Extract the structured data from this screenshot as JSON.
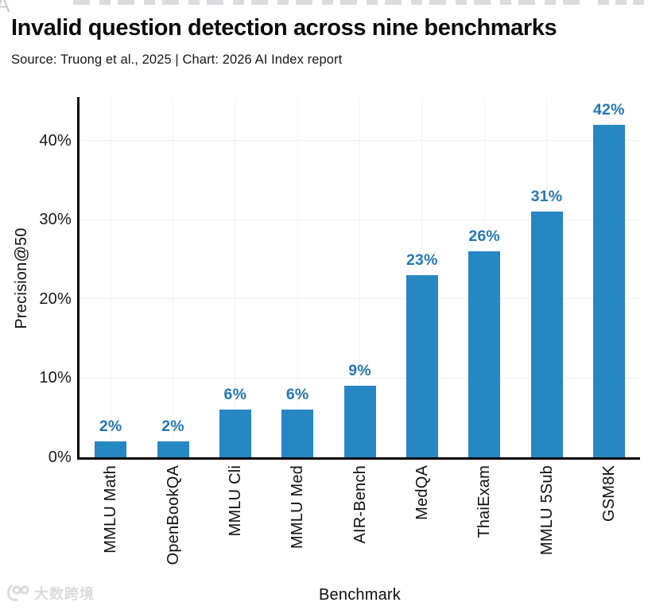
{
  "header": {
    "title": "Invalid question detection across nine benchmarks",
    "subtitle": "Source: Truong et al., 2025 | Chart: 2026 AI Index report"
  },
  "chart_data": {
    "type": "bar",
    "title": "Invalid question detection across nine benchmarks",
    "categories": [
      "MMLU Math",
      "OpenBookQA",
      "MMLU Cli",
      "MMLU Med",
      "AIR-Bench",
      "MedQA",
      "ThaiExam",
      "MMLU 5Sub",
      "GSM8K"
    ],
    "values": [
      2,
      2,
      6,
      6,
      9,
      23,
      26,
      31,
      42
    ],
    "value_labels": [
      "2%",
      "2%",
      "6%",
      "6%",
      "9%",
      "23%",
      "26%",
      "31%",
      "42%"
    ],
    "xlabel": "Benchmark",
    "ylabel": "Precision@50",
    "y_ticks": [
      0,
      10,
      20,
      30,
      40
    ],
    "y_tick_labels": [
      "0%",
      "10%",
      "20%",
      "30%",
      "40%"
    ],
    "ylim": [
      0,
      45.2
    ],
    "grid": true,
    "legend": "none",
    "bar_color": "#2787c3",
    "value_label_color": "#2478b6",
    "axis_color": "#050505",
    "grid_color": "#f1f1f4"
  },
  "watermark": {
    "text": "大数跨境",
    "logo": "100-smile-logo"
  }
}
